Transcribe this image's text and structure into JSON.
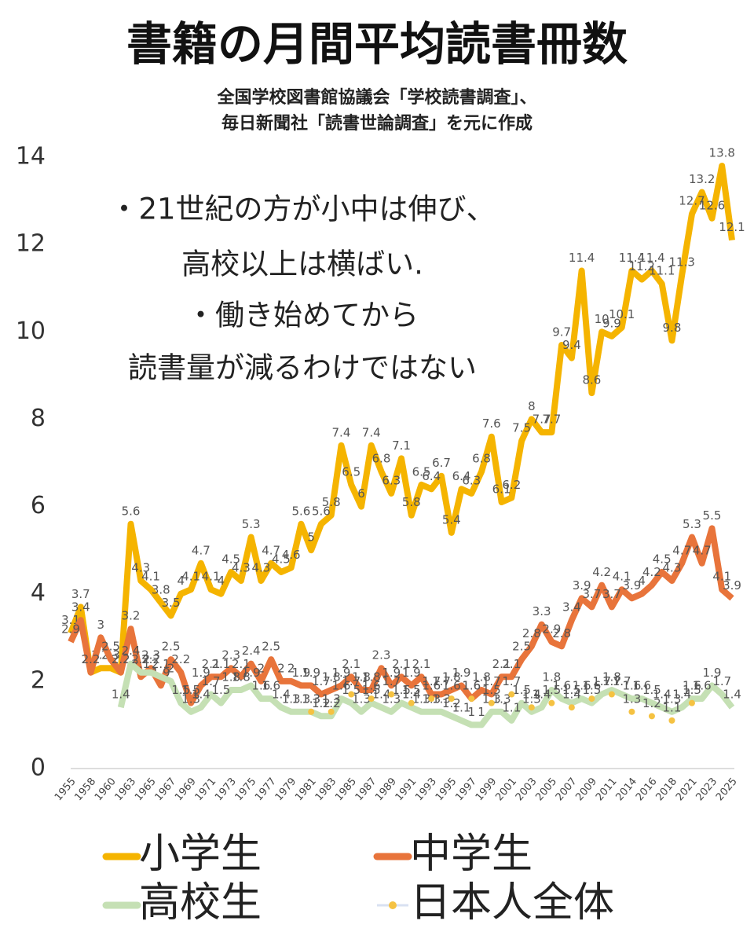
{
  "chart_data": {
    "type": "line",
    "title": "書籍の月間平均読書冊数",
    "subtitle": [
      "全国学校図書館協議会「学校読書調査」、",
      "毎日新聞社「読書世論調査」を元に作成"
    ],
    "annotation": [
      "・21世紀の方が小中は伸び、",
      "高校以上は横ばい.",
      "・働き始めてから",
      "読書量が減るわけではない"
    ],
    "categories": [
      "1955",
      null,
      "1958",
      null,
      "1960",
      null,
      "1963",
      null,
      "1965",
      null,
      "1967",
      null,
      "1969",
      null,
      "1971",
      null,
      "1973",
      null,
      "1975",
      null,
      "1977",
      null,
      "1979",
      null,
      "1981",
      null,
      "1983",
      null,
      "1985",
      null,
      "1987",
      null,
      "1989",
      null,
      "1991",
      null,
      "1993",
      null,
      "1995",
      null,
      "1997",
      null,
      "1999",
      null,
      "2001",
      null,
      "2003",
      null,
      "2005",
      null,
      "2007",
      null,
      "2009",
      null,
      "2011",
      null,
      "2014",
      null,
      "2016",
      null,
      "2018",
      null,
      "2021",
      null,
      "2023",
      null,
      "2025"
    ],
    "ylim": [
      0,
      14
    ],
    "yticks": [
      0,
      2,
      4,
      6,
      8,
      10,
      12,
      14
    ],
    "grid": false,
    "series": [
      {
        "name": "小学生",
        "color": "#f5b400",
        "style": "line",
        "values": [
          3.1,
          3.7,
          2.2,
          2.3,
          2.3,
          2.2,
          5.6,
          4.3,
          4.1,
          3.8,
          3.5,
          4,
          4.1,
          4.7,
          4.1,
          4,
          4.5,
          4.3,
          5.3,
          4.3,
          4.7,
          4.5,
          4.6,
          5.6,
          5,
          5.6,
          5.8,
          7.4,
          6.5,
          6,
          7.4,
          6.8,
          6.3,
          7.1,
          5.8,
          6.5,
          6.4,
          6.7,
          5.4,
          6.4,
          6.3,
          6.8,
          7.6,
          6.1,
          6.2,
          7.5,
          8,
          7.7,
          7.7,
          9.7,
          9.4,
          11.4,
          8.6,
          10,
          9.9,
          10.1,
          11.4,
          11.2,
          11.4,
          11.1,
          9.8,
          11.3,
          12.7,
          13.2,
          12.6,
          13.8,
          12.1
        ]
      },
      {
        "name": "中学生",
        "color": "#e8743b",
        "style": "line",
        "values": [
          2.9,
          3.4,
          2.2,
          3,
          2.5,
          2.2,
          3.2,
          2.1,
          2.3,
          1.9,
          2.5,
          2.2,
          1.5,
          1.9,
          2.1,
          2.1,
          2.3,
          2.1,
          2.4,
          2,
          2.5,
          2,
          2,
          1.9,
          1.9,
          1.7,
          1.8,
          1.9,
          2.1,
          1.8,
          1.8,
          2.3,
          1.9,
          2.1,
          1.9,
          2.1,
          1.7,
          1.7,
          1.8,
          1.9,
          1.6,
          1.8,
          1.7,
          2.1,
          2.1,
          2.5,
          2.8,
          3.3,
          2.9,
          2.8,
          3.4,
          3.9,
          3.7,
          4.2,
          3.7,
          4.1,
          3.9,
          4,
          4.2,
          4.5,
          4.3,
          4.7,
          5.3,
          4.7,
          5.5,
          4.1,
          3.9
        ]
      },
      {
        "name": "高校生",
        "color": "#c5e0b4",
        "style": "line",
        "values": [
          null,
          null,
          null,
          null,
          null,
          1.4,
          2.4,
          2.2,
          2.2,
          2.1,
          2,
          1.5,
          1.3,
          1.4,
          1.7,
          1.5,
          1.8,
          1.8,
          1.9,
          1.6,
          1.6,
          1.4,
          1.3,
          1.3,
          1.3,
          1.2,
          1.2,
          1.6,
          1.5,
          1.3,
          1.5,
          1.4,
          1.3,
          1.5,
          1.4,
          1.3,
          1.3,
          1.3,
          1.2,
          1.1,
          1,
          1,
          1.3,
          1.3,
          1.1,
          1.5,
          1.3,
          1.4,
          1.8,
          1.6,
          1.5,
          1.6,
          1.5,
          1.7,
          1.8,
          1.7,
          1.6,
          1.6,
          1.5,
          1.4,
          1.3,
          1.4,
          1.6,
          1.6,
          1.9,
          1.7,
          1.4
        ]
      },
      {
        "name": "日本人全体",
        "color": "#f5c242",
        "style": "dots",
        "values": [
          null,
          null,
          null,
          null,
          null,
          null,
          null,
          null,
          null,
          null,
          null,
          null,
          null,
          null,
          null,
          null,
          null,
          null,
          null,
          null,
          null,
          null,
          null,
          null,
          1.3,
          null,
          1.3,
          null,
          1.7,
          null,
          1.6,
          null,
          1.7,
          null,
          1.5,
          null,
          1.6,
          null,
          1.6,
          null,
          1.6,
          null,
          1.5,
          null,
          1.7,
          null,
          1.4,
          null,
          1.5,
          null,
          1.4,
          null,
          1.6,
          null,
          1.7,
          null,
          1.3,
          null,
          1.2,
          null,
          1.1,
          null,
          1.5,
          null,
          null,
          null,
          null
        ]
      }
    ]
  }
}
